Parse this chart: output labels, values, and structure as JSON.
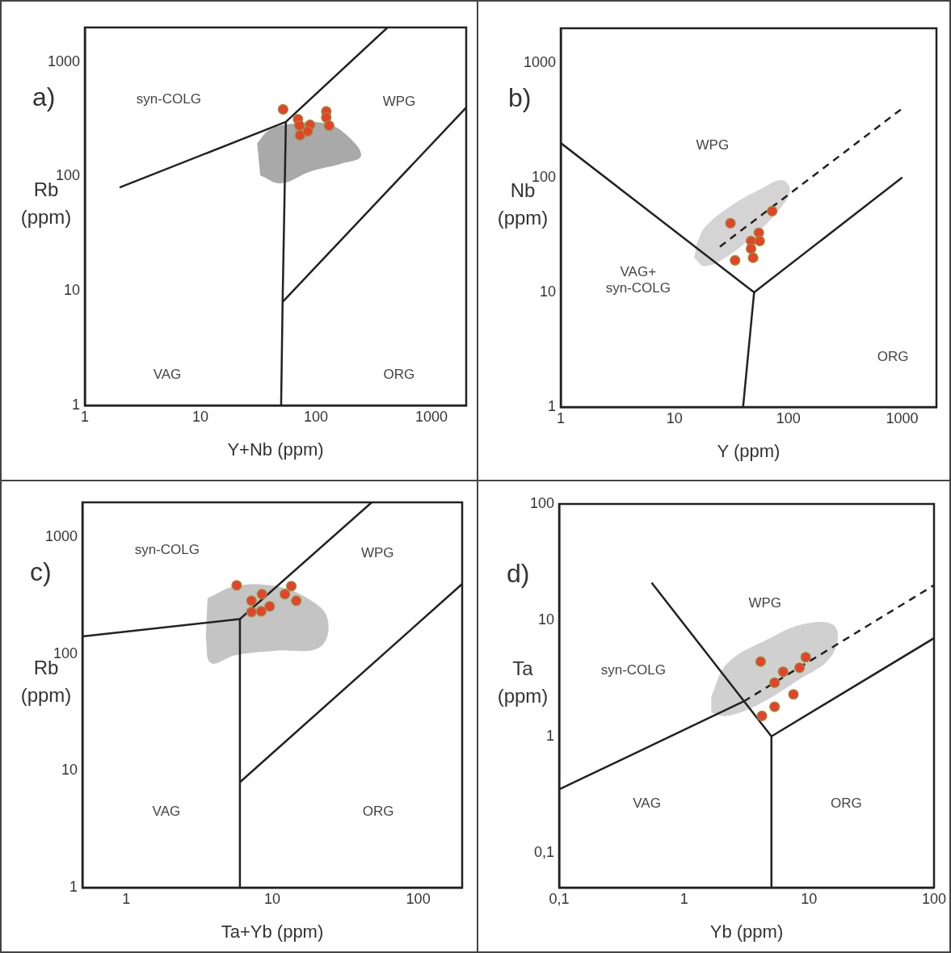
{
  "chart_data": [
    {
      "type": "scatter",
      "title": "a)",
      "xlabel": "Y+Nb (ppm)",
      "ylabel": "Rb (ppm)",
      "log": "xy",
      "xlim": [
        1,
        2000
      ],
      "ylim": [
        1,
        2000
      ],
      "xticks": [
        1,
        10,
        100,
        1000
      ],
      "yticks": [
        1,
        10,
        100,
        1000
      ],
      "grid": false,
      "legend": false,
      "series": [
        {
          "type": "area",
          "color": "#a9a9a9",
          "x": [
            31,
            40,
            64.5,
            123,
            186,
            246,
            170,
            89,
            50,
            33
          ],
          "values": [
            195,
            256,
            290,
            290,
            228,
            152,
            130,
            110,
            87,
            102
          ]
        },
        {
          "type": "line",
          "color": "#222222",
          "x": [
            2,
            55,
            417
          ],
          "values": [
            80,
            300,
            2000
          ]
        },
        {
          "type": "line",
          "color": "#222222",
          "x": [
            55,
            51.5,
            50
          ],
          "values": [
            300,
            8,
            1
          ]
        },
        {
          "type": "line",
          "color": "#222222",
          "x": [
            51.5,
            2000
          ],
          "values": [
            8,
            400
          ]
        },
        {
          "type": "scatter",
          "marker": "circle",
          "color": "#e8412c",
          "x": [
            52,
            70,
            72,
            73,
            89,
            85,
            123,
            123,
            130
          ],
          "values": [
            385,
            316,
            278,
            229,
            282,
            248,
            370,
            327,
            278
          ]
        }
      ],
      "annotations": [
        "syn-COLG",
        "WPG",
        "VAG",
        "ORG"
      ]
    },
    {
      "type": "scatter",
      "title": "b)",
      "xlabel": "Y (ppm)",
      "ylabel": "Nb (ppm)",
      "log": "xy",
      "xlim": [
        1,
        2000
      ],
      "ylim": [
        1,
        2000
      ],
      "xticks": [
        1,
        10,
        100,
        1000
      ],
      "yticks": [
        1,
        10,
        100,
        1000
      ],
      "grid": false,
      "legend": false,
      "series": [
        {
          "type": "area",
          "color": "#d4d4d4",
          "x": [
            15.7,
            18.5,
            30,
            58,
            88,
            103,
            81,
            49,
            30,
            18.5,
            14.9
          ],
          "values": [
            26.7,
            36.9,
            55,
            80,
            95,
            77,
            51,
            31,
            21,
            16.9,
            19.9
          ]
        },
        {
          "type": "line",
          "color": "#222222",
          "x": [
            1,
            50,
            1000
          ],
          "values": [
            200,
            10,
            100
          ]
        },
        {
          "type": "line",
          "color": "#222222",
          "x": [
            50,
            40
          ],
          "values": [
            10,
            1
          ]
        },
        {
          "type": "line",
          "color": "#222222",
          "line_style": "dashed",
          "x": [
            25,
            1000
          ],
          "values": [
            25,
            400
          ]
        },
        {
          "type": "scatter",
          "marker": "circle",
          "color": "#e8412c",
          "x": [
            31,
            72,
            34,
            47,
            55,
            56,
            47,
            49
          ],
          "values": [
            40,
            51,
            19,
            28,
            33,
            28,
            24,
            20
          ]
        }
      ],
      "annotations": [
        "WPG",
        "VAG+ syn-COLG",
        "ORG"
      ]
    },
    {
      "type": "scatter",
      "title": "c)",
      "xlabel": "Ta+Yb (ppm)",
      "ylabel": "Rb (ppm)",
      "log": "xy",
      "xlim": [
        0.5,
        200
      ],
      "ylim": [
        1,
        2000
      ],
      "xticks": [
        1,
        10,
        100
      ],
      "yticks": [
        1,
        10,
        100,
        1000
      ],
      "grid": false,
      "legend": false,
      "series": [
        {
          "type": "area",
          "color": "#c4c4c4",
          "x": [
            3.6,
            5.6,
            10.5,
            17.4,
            23.9,
            21.2,
            10.5,
            5.6,
            3.8,
            3.5
          ],
          "values": [
            301,
            383,
            383,
            301,
            202,
            115,
            107,
            98,
            84,
            136
          ]
        },
        {
          "type": "line",
          "color": "#222222",
          "x": [
            0.5,
            6,
            48
          ],
          "values": [
            142,
            200,
            2000
          ]
        },
        {
          "type": "line",
          "color": "#222222",
          "x": [
            6,
            6
          ],
          "values": [
            200,
            1
          ]
        },
        {
          "type": "line",
          "color": "#222222",
          "x": [
            6,
            200
          ],
          "values": [
            8,
            400
          ]
        },
        {
          "type": "scatter",
          "marker": "circle",
          "color": "#e8412c",
          "x": [
            5.7,
            7.2,
            8.5,
            7.2,
            8.4,
            9.6,
            13.5,
            12.2,
            14.6
          ],
          "values": [
            389,
            287,
            327,
            230,
            233,
            257,
            383,
            327,
            287
          ]
        }
      ],
      "annotations": [
        "syn-COLG",
        "WPG",
        "VAG",
        "ORG"
      ]
    },
    {
      "type": "scatter",
      "title": "d)",
      "xlabel": "Yb (ppm)",
      "ylabel": "Ta (ppm)",
      "log": "xy",
      "xlim": [
        0.1,
        100
      ],
      "ylim": [
        0.05,
        100
      ],
      "xticks": [
        {
          "value": 0.1,
          "label": "0,1"
        },
        1,
        10,
        100
      ],
      "yticks": [
        {
          "value": 0.1,
          "label": "0,1"
        },
        1,
        10,
        100
      ],
      "grid": false,
      "legend": false,
      "series": [
        {
          "type": "area",
          "color": "#d0d0d0",
          "x": [
            1.65,
            2.2,
            4.6,
            9.7,
            16.3,
            15.1,
            8.4,
            4.0,
            2.2,
            1.65
          ],
          "values": [
            2.2,
            4.2,
            6.8,
            9.4,
            8.7,
            4.9,
            3.1,
            1.9,
            1.5,
            1.6
          ]
        },
        {
          "type": "line",
          "color": "#222222",
          "x": [
            0.1,
            3
          ],
          "values": [
            0.35,
            2
          ]
        },
        {
          "type": "line",
          "color": "#222222",
          "x": [
            0.55,
            5,
            100
          ],
          "values": [
            21,
            1,
            7
          ]
        },
        {
          "type": "line",
          "color": "#222222",
          "x": [
            5,
            5
          ],
          "values": [
            1,
            0.05
          ]
        },
        {
          "type": "line",
          "color": "#222222",
          "line_style": "dashed",
          "x": [
            3,
            100
          ],
          "values": [
            2,
            20
          ]
        },
        {
          "type": "scatter",
          "marker": "circle",
          "color": "#e8412c",
          "x": [
            4.1,
            6.2,
            9.4,
            8.4,
            5.3,
            7.5,
            5.3,
            4.2
          ],
          "values": [
            4.4,
            3.6,
            4.8,
            3.9,
            2.9,
            2.3,
            1.8,
            1.5
          ]
        }
      ],
      "annotations": [
        "WPG",
        "syn-COLG",
        "VAG",
        "ORG"
      ]
    }
  ]
}
